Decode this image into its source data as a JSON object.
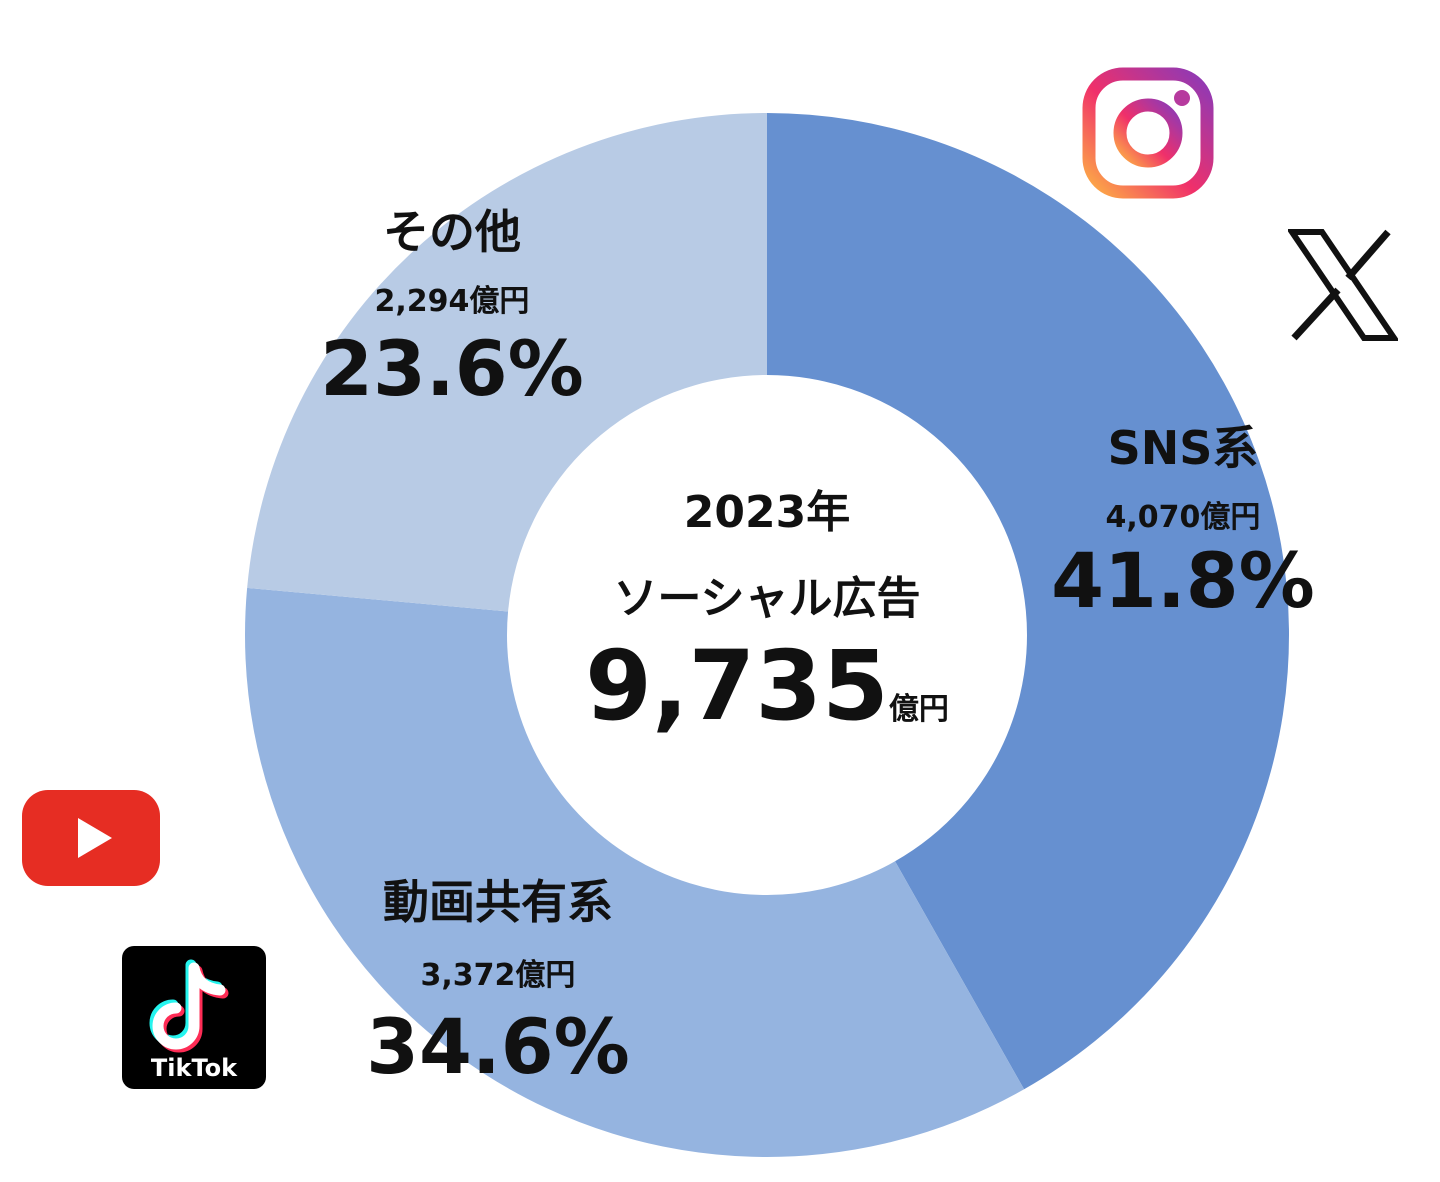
{
  "chart_data": {
    "type": "pie",
    "variant": "donut",
    "title": "2023年 ソーシャル広告",
    "center": {
      "year": "2023年",
      "title": "ソーシャル広告",
      "total": "9,735",
      "unit": "億円"
    },
    "start": "top",
    "direction": "clockwise",
    "slices": [
      {
        "name": "SNS系",
        "value": 4070,
        "amount_label": "4,070億円",
        "percent": 41.8,
        "percent_label": "41.8%",
        "color": "#6690d0"
      },
      {
        "name": "動画共有系",
        "value": 3372,
        "amount_label": "3,372億円",
        "percent": 34.6,
        "percent_label": "34.6%",
        "color": "#95b4e0"
      },
      {
        "name": "その他",
        "value": 2294,
        "amount_label": "2,294億円",
        "percent": 23.6,
        "percent_label": "23.6%",
        "color": "#b8cbe5"
      }
    ]
  },
  "logos": {
    "instagram": "instagram-icon",
    "x": "x-icon",
    "youtube": "youtube-icon",
    "tiktok": "TikTok"
  }
}
